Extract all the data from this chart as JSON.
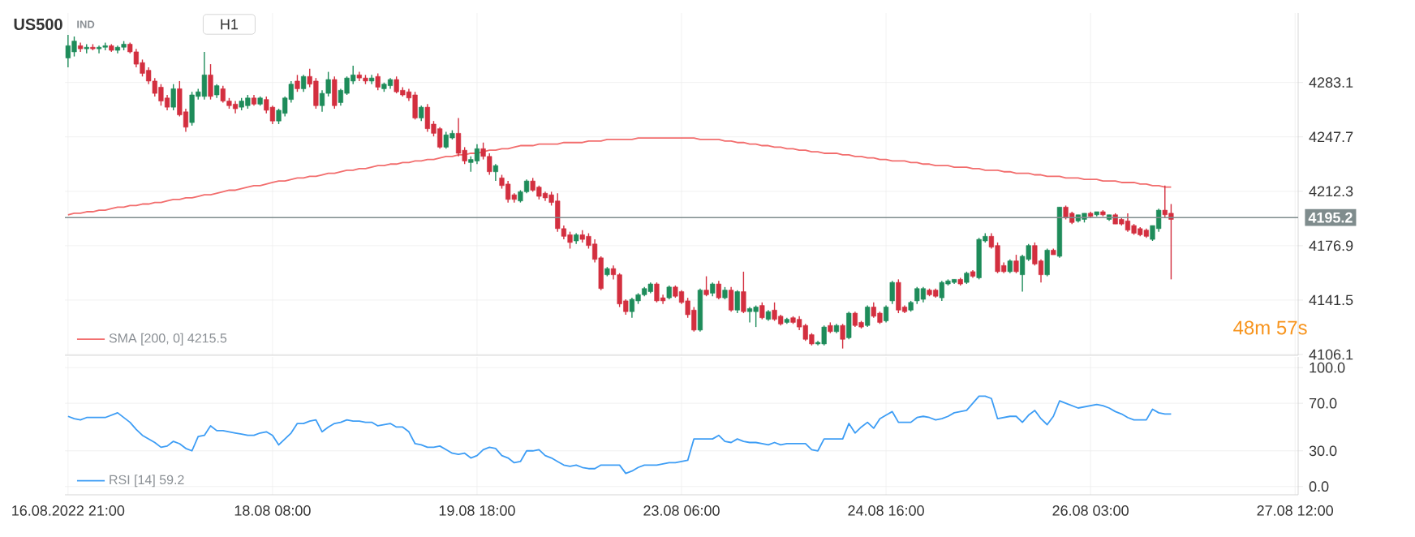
{
  "chart_data": [
    {
      "type": "candlestick",
      "title": "US500",
      "subtitle": "IND",
      "annotations": [
        "H1",
        "48m 57s"
      ],
      "categories": [
        null,
        null,
        null,
        null,
        null,
        null,
        null,
        null,
        null,
        null,
        null,
        null,
        null,
        null,
        null,
        null,
        null,
        null,
        null,
        null,
        null,
        null,
        null,
        null,
        null,
        null,
        null,
        null,
        null,
        null,
        null,
        null,
        null,
        null,
        null,
        null,
        null,
        null,
        null,
        null,
        null,
        null,
        null,
        null,
        null,
        null,
        null,
        null,
        null,
        null,
        null,
        null,
        null,
        null,
        null,
        null,
        null,
        null,
        null,
        null,
        null,
        null,
        null,
        null,
        null,
        null,
        null,
        null,
        null,
        null,
        null,
        null,
        null,
        null,
        null,
        null,
        null,
        null,
        null,
        null,
        null,
        null,
        null,
        null,
        null,
        null,
        null,
        null,
        null,
        null,
        null,
        null,
        null,
        null,
        null,
        null,
        null,
        null,
        null,
        null,
        null,
        null,
        null,
        null,
        null,
        null,
        null,
        null,
        null,
        null,
        null,
        null,
        null,
        null,
        null,
        null,
        null,
        null,
        null,
        null,
        null,
        null,
        null,
        null,
        null,
        null,
        null,
        null,
        null,
        null,
        null,
        null,
        null,
        null,
        null,
        null,
        null,
        null,
        null,
        null,
        null,
        null,
        null,
        null,
        null,
        null,
        null,
        null,
        null,
        null,
        null,
        null,
        null,
        null,
        null,
        null,
        null,
        null,
        null,
        null,
        null,
        null,
        null,
        null,
        null,
        null,
        null,
        null,
        null,
        null,
        null,
        null,
        null,
        null,
        null,
        null,
        null,
        null,
        null,
        null,
        null,
        null,
        null,
        null,
        null,
        null,
        null,
        null,
        null,
        null,
        null,
        null,
        null,
        null,
        null,
        null,
        null,
        null,
        null
      ],
      "ohlc": [
        [
          4299,
          4314,
          4293,
          4307
        ],
        [
          4303,
          4313,
          4300,
          4310
        ],
        [
          4307,
          4309,
          4303,
          4305
        ],
        [
          4305,
          4308,
          4302,
          4306
        ],
        [
          4306,
          4308,
          4304,
          4305
        ],
        [
          4305,
          4307,
          4302,
          4306
        ],
        [
          4306,
          4309,
          4304,
          4307
        ],
        [
          4307,
          4308,
          4303,
          4304
        ],
        [
          4304,
          4307,
          4302,
          4306
        ],
        [
          4306,
          4310,
          4304,
          4308
        ],
        [
          4308,
          4309,
          4302,
          4303
        ],
        [
          4303,
          4305,
          4293,
          4295
        ],
        [
          4296,
          4298,
          4287,
          4289
        ],
        [
          4291,
          4293,
          4282,
          4284
        ],
        [
          4284,
          4286,
          4274,
          4276
        ],
        [
          4280,
          4282,
          4268,
          4271
        ],
        [
          4273,
          4275,
          4265,
          4267
        ],
        [
          4267,
          4282,
          4265,
          4279
        ],
        [
          4279,
          4284,
          4261,
          4262
        ],
        [
          4264,
          4266,
          4251,
          4254
        ],
        [
          4257,
          4277,
          4255,
          4275
        ],
        [
          4274,
          4279,
          4272,
          4277
        ],
        [
          4274,
          4303,
          4272,
          4288
        ],
        [
          4288,
          4295,
          4272,
          4274
        ],
        [
          4275,
          4282,
          4273,
          4281
        ],
        [
          4279,
          4281,
          4270,
          4271
        ],
        [
          4271,
          4273,
          4266,
          4268
        ],
        [
          4269,
          4271,
          4263,
          4266
        ],
        [
          4267,
          4273,
          4265,
          4271
        ],
        [
          4268,
          4275,
          4266,
          4273
        ],
        [
          4273,
          4275,
          4268,
          4269
        ],
        [
          4269,
          4274,
          4268,
          4273
        ],
        [
          4272,
          4274,
          4263,
          4265
        ],
        [
          4267,
          4268,
          4256,
          4258
        ],
        [
          4258,
          4266,
          4256,
          4265
        ],
        [
          4263,
          4274,
          4261,
          4273
        ],
        [
          4272,
          4284,
          4270,
          4282
        ],
        [
          4284,
          4288,
          4277,
          4279
        ],
        [
          4279,
          4288,
          4277,
          4287
        ],
        [
          4287,
          4292,
          4280,
          4282
        ],
        [
          4284,
          4286,
          4266,
          4268
        ],
        [
          4268,
          4278,
          4264,
          4276
        ],
        [
          4276,
          4290,
          4274,
          4285
        ],
        [
          4285,
          4287,
          4266,
          4268
        ],
        [
          4270,
          4279,
          4268,
          4278
        ],
        [
          4276,
          4287,
          4275,
          4286
        ],
        [
          4284,
          4294,
          4282,
          4288
        ],
        [
          4288,
          4290,
          4284,
          4286
        ],
        [
          4286,
          4288,
          4282,
          4284
        ],
        [
          4284,
          4288,
          4282,
          4286
        ],
        [
          4287,
          4289,
          4278,
          4280
        ],
        [
          4279,
          4283,
          4277,
          4282
        ],
        [
          4281,
          4286,
          4279,
          4285
        ],
        [
          4285,
          4287,
          4276,
          4277
        ],
        [
          4278,
          4280,
          4274,
          4275
        ],
        [
          4277,
          4279,
          4271,
          4273
        ],
        [
          4275,
          4277,
          4259,
          4260
        ],
        [
          4260,
          4268,
          4258,
          4267
        ],
        [
          4267,
          4269,
          4251,
          4253
        ],
        [
          4256,
          4258,
          4248,
          4250
        ],
        [
          4253,
          4254,
          4240,
          4241
        ],
        [
          4241,
          4251,
          4240,
          4249
        ],
        [
          4247,
          4252,
          4246,
          4250
        ],
        [
          4250,
          4260,
          4235,
          4237
        ],
        [
          4239,
          4241,
          4230,
          4232
        ],
        [
          4231,
          4235,
          4225,
          4233
        ],
        [
          4232,
          4243,
          4230,
          4240
        ],
        [
          4240,
          4244,
          4233,
          4235
        ],
        [
          4235,
          4237,
          4223,
          4225
        ],
        [
          4225,
          4230,
          4219,
          4229
        ],
        [
          4221,
          4223,
          4214,
          4216
        ],
        [
          4217,
          4219,
          4205,
          4207
        ],
        [
          4210,
          4211,
          4205,
          4207
        ],
        [
          4206,
          4213,
          4205,
          4212
        ],
        [
          4212,
          4220,
          4211,
          4219
        ],
        [
          4219,
          4221,
          4212,
          4213
        ],
        [
          4215,
          4216,
          4207,
          4209
        ],
        [
          4211,
          4212,
          4206,
          4208
        ],
        [
          4210,
          4212,
          4203,
          4205
        ],
        [
          4206,
          4211,
          4186,
          4188
        ],
        [
          4188,
          4190,
          4181,
          4183
        ],
        [
          4184,
          4186,
          4175,
          4179
        ],
        [
          4180,
          4185,
          4178,
          4184
        ],
        [
          4184,
          4187,
          4179,
          4181
        ],
        [
          4183,
          4185,
          4175,
          4177
        ],
        [
          4178,
          4181,
          4166,
          4168
        ],
        [
          4169,
          4170,
          4148,
          4149
        ],
        [
          4158,
          4163,
          4157,
          4162
        ],
        [
          4162,
          4164,
          4155,
          4158
        ],
        [
          4158,
          4159,
          4137,
          4139
        ],
        [
          4141,
          4142,
          4132,
          4134
        ],
        [
          4134,
          4143,
          4130,
          4142
        ],
        [
          4141,
          4146,
          4139,
          4145
        ],
        [
          4145,
          4150,
          4144,
          4149
        ],
        [
          4147,
          4153,
          4146,
          4152
        ],
        [
          4152,
          4153,
          4140,
          4141
        ],
        [
          4143,
          4145,
          4139,
          4141
        ],
        [
          4143,
          4151,
          4142,
          4150
        ],
        [
          4150,
          4151,
          4143,
          4144
        ],
        [
          4147,
          4148,
          4139,
          4140
        ],
        [
          4141,
          4143,
          4130,
          4132
        ],
        [
          4135,
          4137,
          4121,
          4122
        ],
        [
          4122,
          4149,
          4121,
          4148
        ],
        [
          4148,
          4157,
          4144,
          4145
        ],
        [
          4146,
          4153,
          4144,
          4152
        ],
        [
          4152,
          4154,
          4142,
          4143
        ],
        [
          4143,
          4150,
          4142,
          4148
        ],
        [
          4148,
          4150,
          4134,
          4135
        ],
        [
          4135,
          4148,
          4133,
          4147
        ],
        [
          4147,
          4160,
          4133,
          4134
        ],
        [
          4134,
          4137,
          4127,
          4136
        ],
        [
          4134,
          4138,
          4124,
          4137
        ],
        [
          4138,
          4140,
          4129,
          4130
        ],
        [
          4129,
          4135,
          4128,
          4134
        ],
        [
          4135,
          4140,
          4128,
          4129
        ],
        [
          4131,
          4132,
          4125,
          4126
        ],
        [
          4127,
          4130,
          4126,
          4129
        ],
        [
          4130,
          4131,
          4126,
          4127
        ],
        [
          4129,
          4131,
          4122,
          4124
        ],
        [
          4125,
          4126,
          4115,
          4116
        ],
        [
          4119,
          4120,
          4112,
          4113
        ],
        [
          4113,
          4115,
          4112,
          4114
        ],
        [
          4113,
          4125,
          4112,
          4124
        ],
        [
          4125,
          4127,
          4120,
          4121
        ],
        [
          4121,
          4126,
          4120,
          4125
        ],
        [
          4125,
          4126,
          4110,
          4116
        ],
        [
          4117,
          4134,
          4116,
          4133
        ],
        [
          4133,
          4134,
          4124,
          4125
        ],
        [
          4127,
          4128,
          4123,
          4124
        ],
        [
          4125,
          4138,
          4124,
          4137
        ],
        [
          4137,
          4140,
          4130,
          4131
        ],
        [
          4133,
          4134,
          4126,
          4127
        ],
        [
          4128,
          4138,
          4127,
          4137
        ],
        [
          4141,
          4154,
          4139,
          4153
        ],
        [
          4153,
          4155,
          4133,
          4135
        ],
        [
          4137,
          4138,
          4133,
          4134
        ],
        [
          4135,
          4141,
          4134,
          4140
        ],
        [
          4141,
          4150,
          4139,
          4149
        ],
        [
          4142,
          4150,
          4140,
          4149
        ],
        [
          4148,
          4149,
          4144,
          4145
        ],
        [
          4148,
          4149,
          4143,
          4144
        ],
        [
          4143,
          4154,
          4141,
          4153
        ],
        [
          4152,
          4155,
          4151,
          4154
        ],
        [
          4153,
          4155,
          4152,
          4155
        ],
        [
          4155,
          4156,
          4151,
          4152
        ],
        [
          4153,
          4160,
          4152,
          4159
        ],
        [
          4160,
          4161,
          4156,
          4157
        ],
        [
          4156,
          4182,
          4155,
          4181
        ],
        [
          4180,
          4185,
          4179,
          4183
        ],
        [
          4183,
          4185,
          4175,
          4176
        ],
        [
          4177,
          4179,
          4159,
          4160
        ],
        [
          4164,
          4166,
          4159,
          4160
        ],
        [
          4160,
          4168,
          4159,
          4167
        ],
        [
          4167,
          4171,
          4159,
          4160
        ],
        [
          4158,
          4171,
          4147,
          4170
        ],
        [
          4168,
          4178,
          4167,
          4177
        ],
        [
          4177,
          4179,
          4164,
          4165
        ],
        [
          4167,
          4168,
          4153,
          4158
        ],
        [
          4158,
          4175,
          4157,
          4174
        ],
        [
          4174,
          4175,
          4171,
          4171
        ],
        [
          4170,
          4202,
          4169,
          4202
        ],
        [
          4202,
          4203,
          4194,
          4195
        ],
        [
          4198,
          4199,
          4191,
          4192
        ],
        [
          4193,
          4197,
          4192,
          4197
        ],
        [
          4194,
          4198,
          4192,
          4198
        ],
        [
          4198,
          4199,
          4195,
          4196
        ],
        [
          4197,
          4199,
          4196,
          4199
        ],
        [
          4199,
          4200,
          4196,
          4197
        ],
        [
          4194,
          4197,
          4193,
          4197
        ],
        [
          4197,
          4198,
          4191,
          4191
        ],
        [
          4194,
          4195,
          4190,
          4191
        ],
        [
          4193,
          4198,
          4186,
          4187
        ],
        [
          4190,
          4191,
          4184,
          4185
        ],
        [
          4188,
          4189,
          4183,
          4184
        ],
        [
          4187,
          4188,
          4182,
          4183
        ],
        [
          4181,
          4190,
          4180,
          4190
        ],
        [
          4188,
          4201,
          4186,
          4200
        ],
        [
          4200,
          4216,
          4195,
          4197
        ],
        [
          4198,
          4204,
          4155,
          4194
        ],
        null,
        null,
        null,
        null,
        null,
        null,
        null,
        null,
        null,
        null,
        null,
        null,
        null,
        null,
        null,
        null,
        null,
        null,
        null,
        null
      ],
      "series": [
        {
          "name": "SMA [200, 0] 4215.5",
          "type": "line",
          "color": "#f26d6d",
          "values": [
            4197,
            4198,
            4198,
            4199,
            4199,
            4200,
            4200,
            4201,
            4202,
            4202,
            4203,
            4203,
            4204,
            4204,
            4205,
            4205,
            4206,
            4207,
            4207,
            4208,
            4208,
            4209,
            4210,
            4210,
            4211,
            4212,
            4213,
            4213,
            4214,
            4215,
            4216,
            4216,
            4217,
            4218,
            4219,
            4219,
            4220,
            4221,
            4221,
            4222,
            4222,
            4223,
            4224,
            4224,
            4225,
            4226,
            4226,
            4227,
            4227,
            4228,
            4229,
            4229,
            4230,
            4230,
            4231,
            4231,
            4232,
            4232,
            4233,
            4233,
            4234,
            4235,
            4235,
            4236,
            4236,
            4237,
            4237,
            4238,
            4239,
            4239,
            4240,
            4240,
            4241,
            4242,
            4242,
            4242,
            4243,
            4243,
            4243,
            4243,
            4244,
            4244,
            4244,
            4244,
            4245,
            4245,
            4245,
            4246,
            4246,
            4246,
            4246,
            4246,
            4247,
            4247,
            4247,
            4247,
            4247,
            4247,
            4247,
            4247,
            4247,
            4247,
            4246,
            4246,
            4246,
            4246,
            4245,
            4245,
            4244,
            4244,
            4243,
            4243,
            4242,
            4242,
            4241,
            4241,
            4240,
            4240,
            4239,
            4239,
            4238,
            4238,
            4237,
            4237,
            4237,
            4236,
            4236,
            4235,
            4235,
            4234,
            4234,
            4233,
            4233,
            4232,
            4232,
            4232,
            4231,
            4231,
            4230,
            4230,
            4229,
            4229,
            4229,
            4228,
            4228,
            4228,
            4227,
            4227,
            4226,
            4226,
            4226,
            4225,
            4225,
            4224,
            4224,
            4224,
            4223,
            4223,
            4222,
            4222,
            4222,
            4221,
            4221,
            4221,
            4220,
            4220,
            4220,
            4219,
            4219,
            4219,
            4218,
            4218,
            4218,
            4217,
            4217,
            4216,
            4216,
            4215,
            4215,
            null,
            null,
            null,
            null,
            null,
            null,
            null,
            null,
            null,
            null,
            null,
            null,
            null,
            null,
            null,
            null,
            null,
            null,
            null,
            null
          ]
        }
      ],
      "ylim": [
        4105.6,
        4328.3
      ],
      "yticks": [
        4106.1,
        4141.5,
        4176.9,
        4212.3,
        4247.7,
        4283.1
      ],
      "ref_lines": [
        {
          "axis": "y",
          "value": 4195.2,
          "label": "4195.2",
          "color": "#7f8c8d"
        }
      ],
      "grid": true,
      "legend": "bottom left"
    },
    {
      "type": "line",
      "categories": [
        "16.08.2022 21:00",
        null,
        null,
        null,
        null,
        null,
        null,
        null,
        null,
        null,
        null,
        null,
        null,
        null,
        null,
        null,
        null,
        null,
        null,
        null,
        null,
        null,
        null,
        null,
        null,
        null,
        null,
        null,
        null,
        null,
        null,
        null,
        null,
        "18.08 08:00",
        null,
        null,
        null,
        null,
        null,
        null,
        null,
        null,
        null,
        null,
        null,
        null,
        null,
        null,
        null,
        null,
        null,
        null,
        null,
        null,
        null,
        null,
        null,
        null,
        null,
        null,
        null,
        null,
        null,
        null,
        null,
        null,
        "19.08 18:00",
        null,
        null,
        null,
        null,
        null,
        null,
        null,
        null,
        null,
        null,
        null,
        null,
        null,
        null,
        null,
        null,
        null,
        null,
        null,
        null,
        null,
        null,
        null,
        null,
        null,
        null,
        null,
        null,
        null,
        null,
        null,
        null,
        "23.08 06:00",
        null,
        null,
        null,
        null,
        null,
        null,
        null,
        null,
        null,
        null,
        null,
        null,
        null,
        null,
        null,
        null,
        null,
        null,
        null,
        null,
        null,
        null,
        null,
        null,
        null,
        null,
        null,
        null,
        null,
        null,
        null,
        null,
        "24.08 16:00",
        null,
        null,
        null,
        null,
        null,
        null,
        null,
        null,
        null,
        null,
        null,
        null,
        null,
        null,
        null,
        null,
        null,
        null,
        null,
        null,
        null,
        null,
        null,
        null,
        null,
        null,
        null,
        null,
        null,
        null,
        null,
        null,
        "26.08 03:00",
        null,
        null,
        null,
        null,
        null,
        null,
        null,
        null,
        null,
        null,
        null,
        null,
        null,
        null,
        null,
        null,
        null,
        null,
        null,
        null,
        null,
        null,
        null,
        null,
        null,
        null,
        null,
        null,
        null,
        null,
        null,
        null,
        "27.08 12:00"
      ],
      "series": [
        {
          "name": "RSI [14] 59.2",
          "color": "#3d9df5",
          "values": [
            59,
            57,
            56,
            58,
            58,
            58,
            58,
            60,
            62,
            58,
            54,
            48,
            43,
            40,
            37,
            33,
            34,
            38,
            36,
            32,
            30,
            42,
            43,
            51,
            47,
            47,
            46,
            45,
            44,
            43,
            43,
            45,
            46,
            43,
            35,
            40,
            45,
            53,
            53,
            55,
            56,
            46,
            50,
            53,
            54,
            56,
            55,
            55,
            54,
            54,
            51,
            52,
            53,
            50,
            50,
            46,
            36,
            35,
            33,
            33,
            34,
            31,
            28,
            27,
            28,
            24,
            26,
            31,
            33,
            32,
            26,
            24,
            20,
            21,
            30,
            30,
            31,
            26,
            24,
            21,
            18,
            17,
            18,
            16,
            15,
            15,
            18,
            18,
            18,
            18,
            11,
            13,
            16,
            18,
            18,
            18,
            19,
            20,
            20,
            21,
            22,
            40,
            40,
            40,
            40,
            43,
            38,
            37,
            40,
            38,
            37,
            37,
            36,
            35,
            37,
            35,
            36,
            36,
            36,
            36,
            31,
            30,
            40,
            40,
            40,
            40,
            53,
            45,
            50,
            54,
            49,
            57,
            60,
            63,
            54,
            54,
            54,
            58,
            59,
            58,
            56,
            57,
            59,
            62,
            63,
            64,
            70,
            76,
            76,
            74,
            57,
            58,
            59,
            59,
            54,
            60,
            64,
            57,
            52,
            59,
            72,
            70,
            68,
            66,
            67,
            68,
            69,
            68,
            66,
            63,
            61,
            58,
            56,
            56,
            56,
            65,
            62,
            61,
            61,
            null,
            null,
            null,
            null,
            null,
            null,
            null,
            null,
            null,
            null,
            null,
            null,
            null,
            null,
            null,
            null,
            null,
            null,
            null,
            null
          ]
        }
      ],
      "ylim": [
        -7,
        109
      ],
      "yticks": [
        {
          "value": 0,
          "label": "0.0"
        },
        {
          "value": 30,
          "label": "30.0"
        },
        {
          "value": 70,
          "label": "70.0"
        },
        {
          "value": 100,
          "label": "100.0"
        }
      ],
      "grid": true,
      "legend": "bottom left"
    }
  ]
}
